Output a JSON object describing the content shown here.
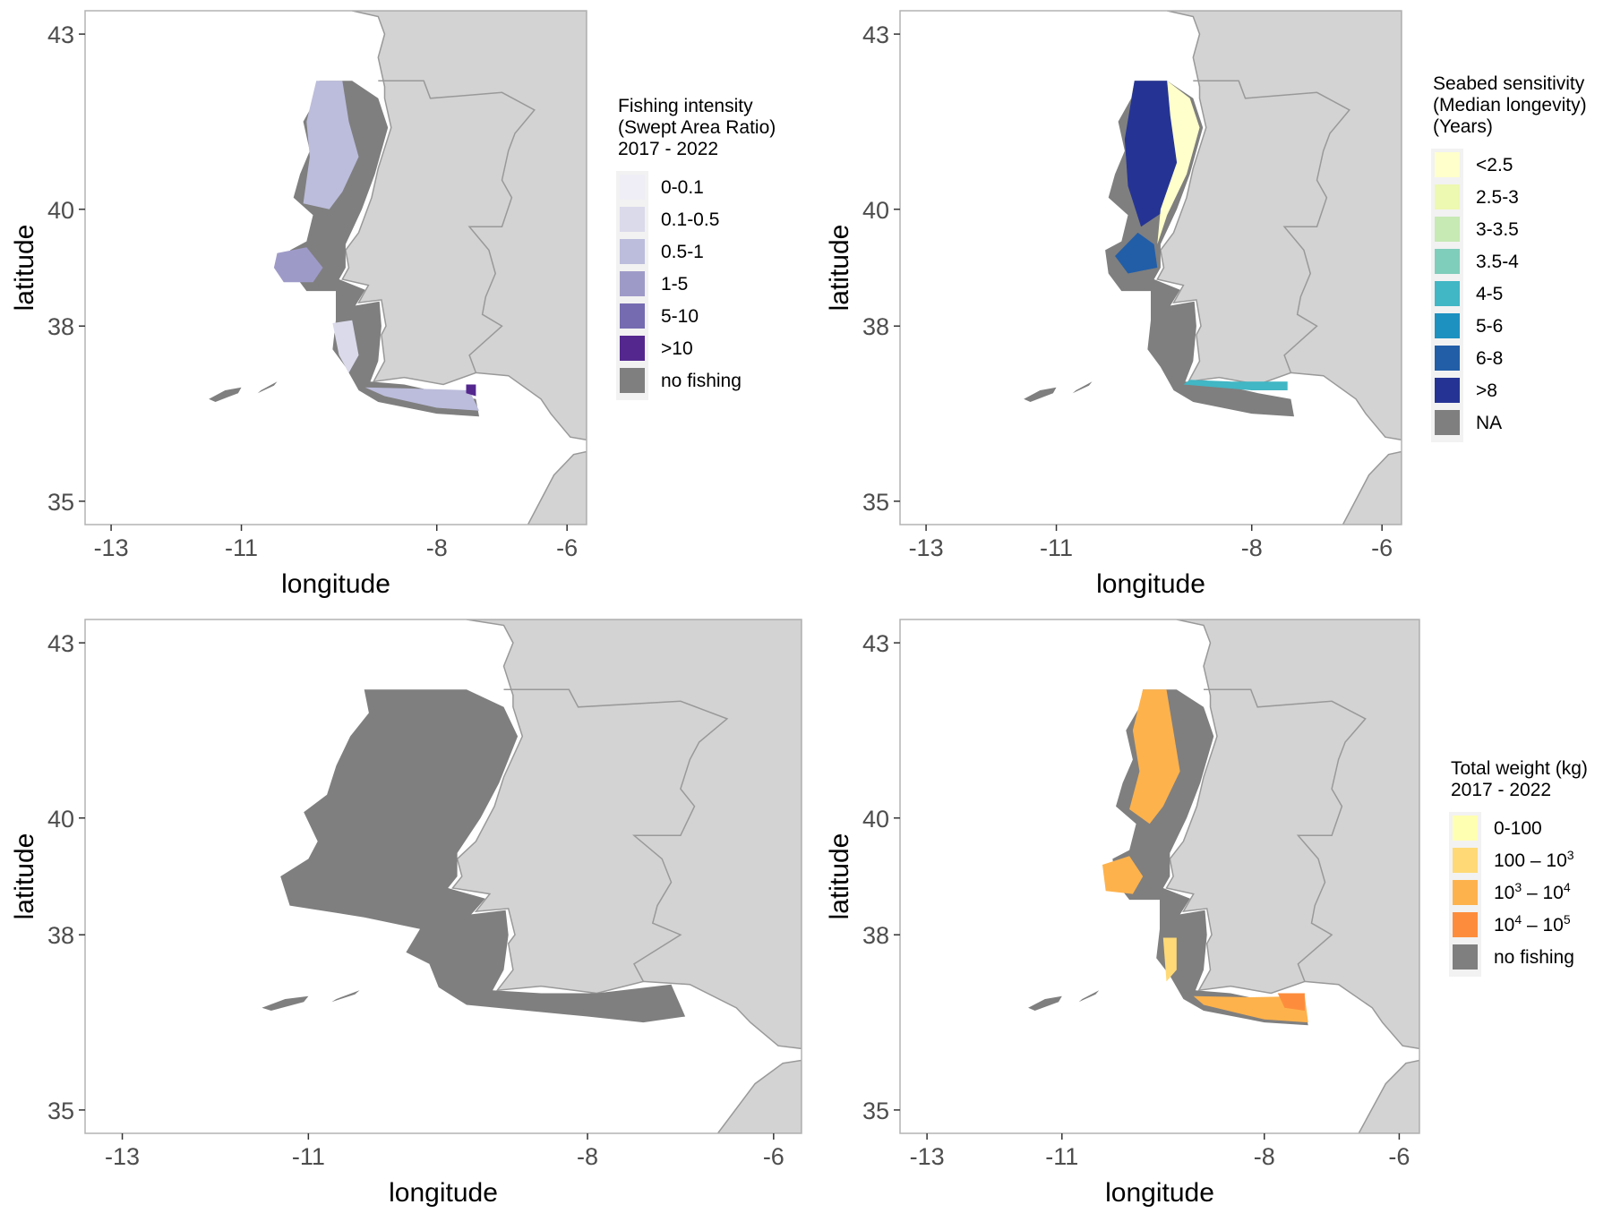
{
  "colors": {
    "land": "#d3d3d3",
    "coast": "#999999",
    "no_fishing": "#7f7f7f",
    "frame": "#b3b3b3",
    "legend_bg": "#f2f2f2"
  },
  "panels": [
    {
      "id": "intensity",
      "xlabel": "longitude",
      "ylabel": "latitude",
      "x_ticks": [
        "-13",
        "-11",
        "-8",
        "-6"
      ],
      "y_ticks": [
        "43",
        "40",
        "38",
        "35"
      ],
      "xlim": [
        -13.4,
        -5.7
      ],
      "ylim": [
        34.6,
        43.4
      ],
      "legend": {
        "title": [
          "Fishing intensity",
          "(Swept Area Ratio)",
          " 2017 - 2022"
        ],
        "items": [
          {
            "label": "0-0.1",
            "color": "#efedf5"
          },
          {
            "label": "0.1-0.5",
            "color": "#dadaeb"
          },
          {
            "label": "0.5-1",
            "color": "#bcbddc"
          },
          {
            "label": "1-5",
            "color": "#9e9ac8"
          },
          {
            "label": "5-10",
            "color": "#756bb1"
          },
          {
            "label": ">10",
            "color": "#54278f"
          },
          {
            "label": "no fishing",
            "color": "#7f7f7f"
          }
        ]
      }
    },
    {
      "id": "sensitivity",
      "xlabel": "longitude",
      "ylabel": "latitude",
      "x_ticks": [
        "-13",
        "-11",
        "-8",
        "-6"
      ],
      "y_ticks": [
        "43",
        "40",
        "38",
        "35"
      ],
      "xlim": [
        -13.4,
        -5.7
      ],
      "ylim": [
        34.6,
        43.4
      ],
      "legend": {
        "title": [
          "Seabed sensitivity",
          "(Median longevity)",
          "(Years)"
        ],
        "items": [
          {
            "label": "<2.5",
            "color": "#ffffcc"
          },
          {
            "label": "2.5-3",
            "color": "#edf8b1"
          },
          {
            "label": "3-3.5",
            "color": "#c7e9b4"
          },
          {
            "label": "3.5-4",
            "color": "#7fcdbb"
          },
          {
            "label": "4-5",
            "color": "#41b6c4"
          },
          {
            "label": "5-6",
            "color": "#1d91c0"
          },
          {
            "label": "6-8",
            "color": "#225ea8"
          },
          {
            "label": ">8",
            "color": "#253494"
          },
          {
            "label": "NA",
            "color": "#7f7f7f"
          }
        ]
      }
    },
    {
      "id": "nofishing",
      "xlabel": "longitude",
      "ylabel": "latitude",
      "x_ticks": [
        "-13",
        "-11",
        "-8",
        "-6"
      ],
      "y_ticks": [
        "43",
        "40",
        "38",
        "35"
      ],
      "xlim": [
        -13.4,
        -5.7
      ],
      "ylim": [
        34.6,
        43.4
      ],
      "legend": null
    },
    {
      "id": "weight",
      "xlabel": "longitude",
      "ylabel": "latitude",
      "x_ticks": [
        "-13",
        "-11",
        "-8",
        "-6"
      ],
      "y_ticks": [
        "43",
        "40",
        "38",
        "35"
      ],
      "xlim": [
        -13.4,
        -5.7
      ],
      "ylim": [
        34.6,
        43.4
      ],
      "legend": {
        "title": [
          "Total weight (kg)",
          " 2017 - 2022"
        ],
        "items": [
          {
            "label": "0-100",
            "color": "#ffffb2"
          },
          {
            "label": "100 – 10^3",
            "color": "#fed976"
          },
          {
            "label": "10^3 – 10^4",
            "color": "#feb24c"
          },
          {
            "label": "10^4 – 10^5",
            "color": "#fd8d3c"
          },
          {
            "label": "no fishing",
            "color": "#7f7f7f"
          }
        ]
      }
    }
  ]
}
